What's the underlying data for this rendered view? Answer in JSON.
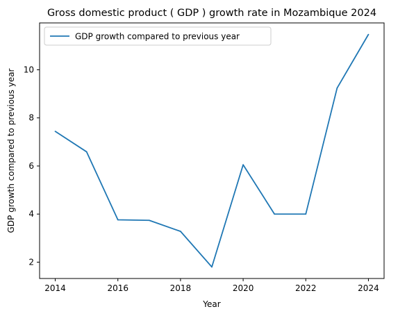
{
  "chart_data": {
    "type": "line",
    "title": "Gross domestic product ( GDP ) growth rate in Mozambique 2024",
    "xlabel": "Year",
    "ylabel": "GDP growth compared to previous year",
    "x": [
      2014,
      2015,
      2016,
      2017,
      2018,
      2019,
      2020,
      2021,
      2022,
      2023,
      2024
    ],
    "series": [
      {
        "name": "GDP growth compared to previous year",
        "color": "#1f77b4",
        "values": [
          7.44,
          6.59,
          3.76,
          3.74,
          3.28,
          1.8,
          6.05,
          4.0,
          4.0,
          9.24,
          11.47
        ]
      }
    ],
    "xticks": [
      "2014",
      "2016",
      "2018",
      "2020",
      "2022",
      "2024"
    ],
    "yticks": [
      "2",
      "4",
      "6",
      "8",
      "10"
    ],
    "xlim": [
      2013.5,
      2024.5
    ],
    "ylim": [
      1.32,
      11.95
    ],
    "grid": false,
    "legend_position": "top-left"
  }
}
